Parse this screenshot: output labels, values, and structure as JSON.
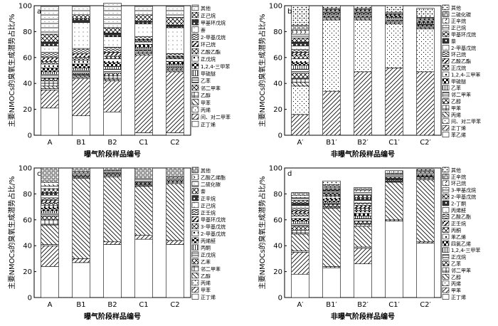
{
  "chart_data": [
    {
      "type": "bar",
      "stacked": true,
      "panel_label": "a",
      "xlabel": "曝气阶段样品编号",
      "ylabel": "主要NMOCs的臭氧生成潜势占比/%",
      "ylim": [
        0,
        100
      ],
      "yticks": [
        "0",
        "20",
        "40",
        "60",
        "80",
        "100"
      ],
      "categories": [
        "A",
        "B1",
        "B2",
        "C1",
        "C2"
      ],
      "legend": [
        "其他",
        "正己烷",
        "甲基环戊烷",
        "萘",
        "2-甲基戊烷",
        "环己烷",
        "乙酸乙酯",
        "正戊烷",
        "1,2,4-三甲苯",
        "甲硫醚",
        "乙苯",
        "邻二甲苯",
        "乙醇",
        "甲苯",
        "丙烯",
        "间、对二甲苯",
        "正丁烯"
      ],
      "series": [
        {
          "name": "正丁烯",
          "values": [
            21,
            15,
            18,
            2,
            2
          ]
        },
        {
          "name": "间、对二甲苯",
          "values": [
            14,
            29,
            24,
            60,
            47
          ]
        },
        {
          "name": "丙烯",
          "values": [
            1,
            1,
            1,
            1,
            1
          ]
        },
        {
          "name": "甲苯",
          "values": [
            2,
            1,
            1,
            1,
            1
          ]
        },
        {
          "name": "乙醇",
          "values": [
            4,
            1,
            2,
            1,
            1
          ]
        },
        {
          "name": "邻二甲苯",
          "values": [
            2,
            1,
            2,
            1,
            1
          ]
        },
        {
          "name": "乙苯",
          "values": [
            3,
            2,
            3,
            1,
            1
          ]
        },
        {
          "name": "甲硫醚",
          "values": [
            2,
            2,
            2,
            1,
            1
          ]
        },
        {
          "name": "1,2,4-三甲苯",
          "values": [
            3,
            3,
            3,
            2,
            2
          ]
        },
        {
          "name": "正戊烷",
          "values": [
            3,
            3,
            3,
            2,
            2
          ]
        },
        {
          "name": "乙酸乙酯",
          "values": [
            2,
            2,
            2,
            1,
            1
          ]
        },
        {
          "name": "环己烷",
          "values": [
            3,
            3,
            3,
            1,
            1
          ]
        },
        {
          "name": "2-甲基戊烷",
          "values": [
            4,
            4,
            4,
            2,
            2
          ]
        },
        {
          "name": "萘",
          "values": [
            5,
            20,
            8,
            10,
            20
          ]
        },
        {
          "name": "甲基环戊烷",
          "values": [
            3,
            3,
            3,
            2,
            2
          ]
        },
        {
          "name": "正己烷",
          "values": [
            6,
            3,
            4,
            5,
            6
          ]
        },
        {
          "name": "其他",
          "values": [
            22,
            7,
            19,
            7,
            9
          ]
        }
      ]
    },
    {
      "type": "bar",
      "stacked": true,
      "panel_label": "b",
      "xlabel": "非曝气阶段样品编号",
      "ylabel": "主要NMOCs的臭氧生成潜势占比/%",
      "ylim": [
        0,
        100
      ],
      "yticks": [
        "0",
        "20",
        "40",
        "60",
        "80",
        "100"
      ],
      "categories": [
        "A′",
        "B1′",
        "B2′",
        "C1′",
        "C2′"
      ],
      "legend": [
        "其他",
        "二硫化碳",
        "正辛烷",
        "正己烷",
        "甲基环戊烷",
        "萘",
        "2-甲基戊烷",
        "环己烷",
        "乙酸乙酯",
        "正戊烷",
        "1,2,4-三甲苯",
        "甲硫醚",
        "乙苯",
        "邻二甲苯",
        "乙醇",
        "甲苯",
        "丙烯",
        "间、对二甲苯",
        "正丁烯",
        "苯乙烯"
      ],
      "series": [
        {
          "name": "苯乙烯",
          "values": [
            0,
            0,
            0,
            0,
            0
          ]
        },
        {
          "name": "正丁烯",
          "values": [
            16,
            34,
            49,
            52,
            49
          ]
        },
        {
          "name": "间、对二甲苯",
          "values": [
            22,
            55,
            40,
            34,
            33
          ]
        },
        {
          "name": "丙烯",
          "values": [
            3,
            1,
            1,
            1,
            1
          ]
        },
        {
          "name": "甲苯",
          "values": [
            3,
            1,
            1,
            1,
            1
          ]
        },
        {
          "name": "乙醇",
          "values": [
            4,
            1,
            1,
            1,
            1
          ]
        },
        {
          "name": "邻二甲苯",
          "values": [
            3,
            1,
            1,
            1,
            1
          ]
        },
        {
          "name": "乙苯",
          "values": [
            3,
            1,
            1,
            1,
            1
          ]
        },
        {
          "name": "甲硫醚",
          "values": [
            2,
            1,
            1,
            1,
            1
          ]
        },
        {
          "name": "1,2,4-三甲苯",
          "values": [
            3,
            1,
            1,
            1,
            1
          ]
        },
        {
          "name": "正戊烷",
          "values": [
            3,
            0,
            0,
            0,
            0
          ]
        },
        {
          "name": "乙酸乙酯",
          "values": [
            2,
            0,
            0,
            0,
            0
          ]
        },
        {
          "name": "环己烷",
          "values": [
            2,
            0,
            0,
            0,
            0
          ]
        },
        {
          "name": "2-甲基戊烷",
          "values": [
            3,
            0,
            0,
            0,
            0
          ]
        },
        {
          "name": "萘",
          "values": [
            3,
            0,
            0,
            0,
            0
          ]
        },
        {
          "name": "甲基环戊烷",
          "values": [
            3,
            1,
            1,
            1,
            1
          ]
        },
        {
          "name": "正己烷",
          "values": [
            3,
            0,
            0,
            0,
            0
          ]
        },
        {
          "name": "正辛烷",
          "values": [
            3,
            0,
            0,
            0,
            0
          ]
        },
        {
          "name": "二硫化碳",
          "values": [
            4,
            1,
            1,
            1,
            1
          ]
        },
        {
          "name": "其他",
          "values": [
            15,
            2,
            2,
            5,
            7
          ]
        }
      ]
    },
    {
      "type": "bar",
      "stacked": true,
      "panel_label": "c",
      "xlabel": "曝气阶段样品编号",
      "ylabel": "主要NMOCs的臭氧生成潜势占比/%",
      "ylim": [
        0,
        100
      ],
      "yticks": [
        "0",
        "20",
        "40",
        "60",
        "80",
        "100"
      ],
      "categories": [
        "A",
        "B1",
        "B2",
        "C1",
        "C2"
      ],
      "legend": [
        "其他",
        "乙酸乙烯酯",
        "二硫化碳",
        "萘",
        "正辛烷",
        "正己烷",
        "正壬烷",
        "甲基环戊烷",
        "3-甲基戊烷",
        "2-甲基戊烷",
        "丙烯醛",
        "丙酮",
        "正戊烷",
        "乙苯",
        "邻二甲苯",
        "乙醇",
        "丙烯",
        "甲苯",
        "正丁烯"
      ],
      "series": [
        {
          "name": "正丁烯",
          "values": [
            24,
            27,
            41,
            45,
            41
          ]
        },
        {
          "name": "甲苯",
          "values": [
            16,
            3,
            2,
            3,
            3
          ]
        },
        {
          "name": "丙烯",
          "values": [
            1,
            0,
            0,
            0,
            0
          ]
        },
        {
          "name": "乙醇",
          "values": [
            15,
            62,
            50,
            38,
            44
          ]
        },
        {
          "name": "邻二甲苯",
          "values": [
            4,
            1,
            1,
            1,
            1
          ]
        },
        {
          "name": "乙苯",
          "values": [
            3,
            1,
            1,
            1,
            1
          ]
        },
        {
          "name": "正戊烷",
          "values": [
            2,
            0,
            0,
            0,
            0
          ]
        },
        {
          "name": "丙酮",
          "values": [
            2,
            0,
            0,
            0,
            0
          ]
        },
        {
          "name": "丙烯醛",
          "values": [
            2,
            0,
            0,
            0,
            0
          ]
        },
        {
          "name": "2-甲基戊烷",
          "values": [
            2,
            0,
            0,
            0,
            0
          ]
        },
        {
          "name": "3-甲基戊烷",
          "values": [
            2,
            0,
            0,
            0,
            0
          ]
        },
        {
          "name": "甲基环戊烷",
          "values": [
            2,
            0,
            0,
            0,
            0
          ]
        },
        {
          "name": "正壬烷",
          "values": [
            2,
            0,
            0,
            0,
            0
          ]
        },
        {
          "name": "正己烷",
          "values": [
            2,
            0,
            0,
            0,
            0
          ]
        },
        {
          "name": "正辛烷",
          "values": [
            2,
            0,
            0,
            0,
            0
          ]
        },
        {
          "name": "萘",
          "values": [
            3,
            1,
            1,
            1,
            1
          ]
        },
        {
          "name": "二硫化碳",
          "values": [
            2,
            1,
            1,
            2,
            1
          ]
        },
        {
          "name": "乙酸乙烯酯",
          "values": [
            3,
            1,
            1,
            1,
            1
          ]
        },
        {
          "name": "其他",
          "values": [
            11,
            3,
            2,
            8,
            7
          ]
        }
      ]
    },
    {
      "type": "bar",
      "stacked": true,
      "panel_label": "d",
      "xlabel": "非曝气阶段样品编号",
      "ylabel": "主要NMOCs的臭氧生成潜势占比/%",
      "ylim": [
        0,
        100
      ],
      "yticks": [
        "0",
        "20",
        "40",
        "60",
        "80",
        "100"
      ],
      "categories": [
        "A′",
        "B1′",
        "B2′",
        "C1′",
        "C2′"
      ],
      "legend": [
        "其他",
        "正辛烷",
        "环己烷",
        "3-甲基戊烷",
        "2-甲基戊烷",
        "2-丁酮",
        "丙烯醛",
        "乙酸乙酯",
        "正壬烷",
        "丙酮",
        "苯乙烯",
        "四氯乙烯",
        "1,2,4-三甲苯",
        "正戊烷",
        "乙苯",
        "邻二甲苯",
        "乙醇",
        "丙烯",
        "甲苯",
        "正丁烯"
      ],
      "series": [
        {
          "name": "正丁烯",
          "values": [
            18,
            23,
            26,
            59,
            42
          ]
        },
        {
          "name": "甲苯",
          "values": [
            17,
            1,
            12,
            1,
            1
          ]
        },
        {
          "name": "丙烯",
          "values": [
            1,
            0,
            1,
            0,
            0
          ]
        },
        {
          "name": "乙醇",
          "values": [
            13,
            45,
            16,
            29,
            48
          ]
        },
        {
          "name": "邻二甲苯",
          "values": [
            3,
            1,
            2,
            1,
            1
          ]
        },
        {
          "name": "乙苯",
          "values": [
            3,
            2,
            2,
            1,
            1
          ]
        },
        {
          "name": "正戊烷",
          "values": [
            2,
            1,
            2,
            0,
            0
          ]
        },
        {
          "name": "1,2,4-三甲苯",
          "values": [
            2,
            1,
            2,
            0,
            0
          ]
        },
        {
          "name": "四氯乙烯",
          "values": [
            2,
            2,
            2,
            0,
            0
          ]
        },
        {
          "name": "苯乙烯",
          "values": [
            2,
            2,
            2,
            0,
            0
          ]
        },
        {
          "name": "丙酮",
          "values": [
            2,
            1,
            2,
            0,
            0
          ]
        },
        {
          "name": "正壬烷",
          "values": [
            2,
            1,
            2,
            0,
            0
          ]
        },
        {
          "name": "乙酸乙酯",
          "values": [
            2,
            1,
            2,
            0,
            0
          ]
        },
        {
          "name": "丙烯醛",
          "values": [
            2,
            1,
            2,
            0,
            0
          ]
        },
        {
          "name": "2-丁酮",
          "values": [
            2,
            1,
            2,
            1,
            1
          ]
        },
        {
          "name": "2-甲基戊烷",
          "values": [
            2,
            1,
            2,
            1,
            1
          ]
        },
        {
          "name": "3-甲基戊烷",
          "values": [
            2,
            1,
            2,
            1,
            1
          ]
        },
        {
          "name": "环己烷",
          "values": [
            2,
            1,
            2,
            1,
            1
          ]
        },
        {
          "name": "正辛烷",
          "values": [
            2,
            1,
            2,
            1,
            1
          ]
        },
        {
          "name": "其他",
          "values": [
            0,
            3,
            0,
            2,
            1
          ]
        }
      ]
    }
  ]
}
